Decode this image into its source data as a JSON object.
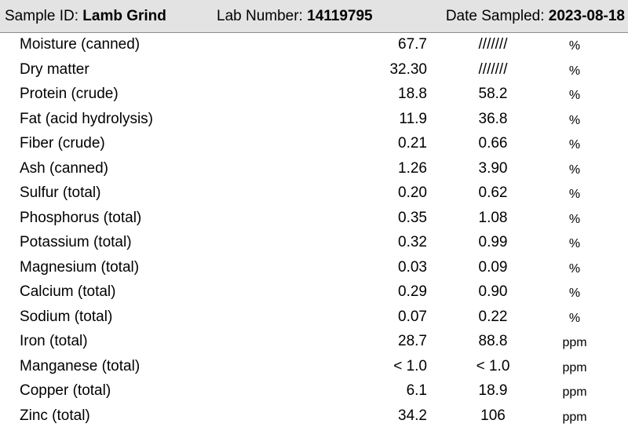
{
  "header": {
    "sample_label": "Sample ID:",
    "sample_value": "Lamb Grind",
    "lab_label": "Lab Number:",
    "lab_value": "14119795",
    "date_label": "Date Sampled:",
    "date_value": "2023-08-18"
  },
  "rows": [
    {
      "name": "Moisture (canned)",
      "as_fed": "67.7",
      "dry_basis": "///////",
      "unit": "%"
    },
    {
      "name": "Dry matter",
      "as_fed": "32.30",
      "dry_basis": "///////",
      "unit": "%"
    },
    {
      "name": "Protein (crude)",
      "as_fed": "18.8",
      "dry_basis": "58.2",
      "unit": "%"
    },
    {
      "name": "Fat (acid hydrolysis)",
      "as_fed": "11.9",
      "dry_basis": "36.8",
      "unit": "%"
    },
    {
      "name": "Fiber (crude)",
      "as_fed": "0.21",
      "dry_basis": "0.66",
      "unit": "%"
    },
    {
      "name": "Ash (canned)",
      "as_fed": "1.26",
      "dry_basis": "3.90",
      "unit": "%"
    },
    {
      "name": "Sulfur (total)",
      "as_fed": "0.20",
      "dry_basis": "0.62",
      "unit": "%"
    },
    {
      "name": "Phosphorus (total)",
      "as_fed": "0.35",
      "dry_basis": "1.08",
      "unit": "%"
    },
    {
      "name": "Potassium (total)",
      "as_fed": "0.32",
      "dry_basis": "0.99",
      "unit": "%"
    },
    {
      "name": "Magnesium (total)",
      "as_fed": "0.03",
      "dry_basis": "0.09",
      "unit": "%"
    },
    {
      "name": "Calcium (total)",
      "as_fed": "0.29",
      "dry_basis": "0.90",
      "unit": "%"
    },
    {
      "name": "Sodium (total)",
      "as_fed": "0.07",
      "dry_basis": "0.22",
      "unit": "%"
    },
    {
      "name": "Iron (total)",
      "as_fed": "28.7",
      "dry_basis": "88.8",
      "unit": "ppm"
    },
    {
      "name": "Manganese (total)",
      "as_fed": "< 1.0",
      "dry_basis": "< 1.0",
      "unit": "ppm"
    },
    {
      "name": "Copper (total)",
      "as_fed": "6.1",
      "dry_basis": "18.9",
      "unit": "ppm"
    },
    {
      "name": "Zinc (total)",
      "as_fed": "34.2",
      "dry_basis": "106",
      "unit": "ppm"
    }
  ]
}
